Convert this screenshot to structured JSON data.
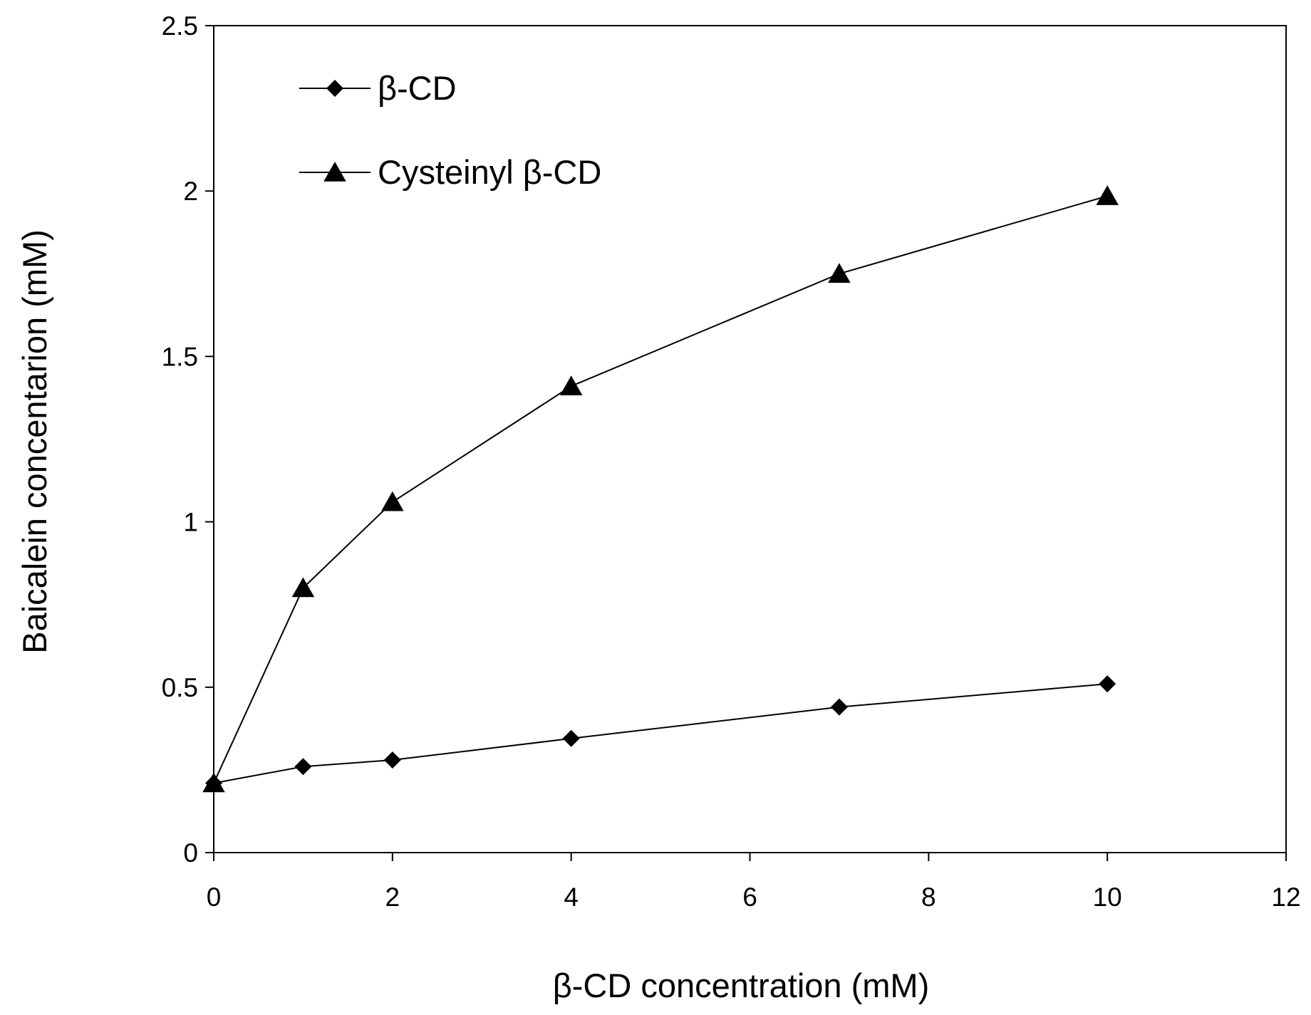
{
  "chart_data": {
    "type": "line",
    "title": "",
    "xlabel": "β-CD concentration (mM)",
    "ylabel": "Baicalein concentarion  (mM)",
    "xlim": [
      0,
      12
    ],
    "ylim": [
      0,
      2.5
    ],
    "x_ticks": [
      "0",
      "2",
      "4",
      "6",
      "8",
      "10",
      "12"
    ],
    "y_ticks": [
      "0",
      "0.5",
      "1",
      "1.5",
      "2",
      "2.5"
    ],
    "grid": false,
    "legend_position": "top-left",
    "series": [
      {
        "name": "β-CD",
        "marker": "diamond",
        "x": [
          0,
          1,
          2,
          4,
          7,
          10
        ],
        "y": [
          0.21,
          0.26,
          0.28,
          0.345,
          0.44,
          0.51
        ]
      },
      {
        "name": "Cysteinyl β-CD",
        "marker": "triangle",
        "x": [
          0,
          1,
          2,
          4,
          7,
          10
        ],
        "y": [
          0.21,
          0.8,
          1.06,
          1.41,
          1.75,
          1.985
        ]
      }
    ],
    "colors": {
      "line": "#000000",
      "marker": "#000000",
      "frame": "#000000",
      "background": "#ffffff"
    }
  }
}
